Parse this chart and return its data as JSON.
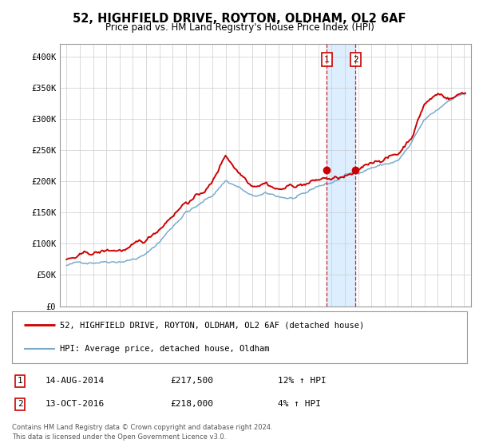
{
  "title": "52, HIGHFIELD DRIVE, ROYTON, OLDHAM, OL2 6AF",
  "subtitle": "Price paid vs. HM Land Registry's House Price Index (HPI)",
  "legend_line1": "52, HIGHFIELD DRIVE, ROYTON, OLDHAM, OL2 6AF (detached house)",
  "legend_line2": "HPI: Average price, detached house, Oldham",
  "sale1_label": "1",
  "sale1_date": "14-AUG-2014",
  "sale1_price": "£217,500",
  "sale1_hpi": "12% ↑ HPI",
  "sale1_year": 2014.617,
  "sale1_value": 217500,
  "sale2_label": "2",
  "sale2_date": "13-OCT-2016",
  "sale2_price": "£218,000",
  "sale2_hpi": "4% ↑ HPI",
  "sale2_year": 2016.789,
  "sale2_value": 218000,
  "footer_line1": "Contains HM Land Registry data © Crown copyright and database right 2024.",
  "footer_line2": "This data is licensed under the Open Government Licence v3.0.",
  "red_color": "#cc0000",
  "blue_color": "#7aabcc",
  "shade_color": "#ddeeff",
  "ylim_min": 0,
  "ylim_max": 420000,
  "yticks": [
    0,
    50000,
    100000,
    150000,
    200000,
    250000,
    300000,
    350000,
    400000
  ],
  "ytick_labels": [
    "£0",
    "£50K",
    "£100K",
    "£150K",
    "£200K",
    "£250K",
    "£300K",
    "£350K",
    "£400K"
  ],
  "xlim_min": 1994.5,
  "xlim_max": 2025.5,
  "xticks": [
    1995,
    1996,
    1997,
    1998,
    1999,
    2000,
    2001,
    2002,
    2003,
    2004,
    2005,
    2006,
    2007,
    2008,
    2009,
    2010,
    2011,
    2012,
    2013,
    2014,
    2015,
    2016,
    2017,
    2018,
    2019,
    2020,
    2021,
    2022,
    2023,
    2024,
    2025
  ]
}
